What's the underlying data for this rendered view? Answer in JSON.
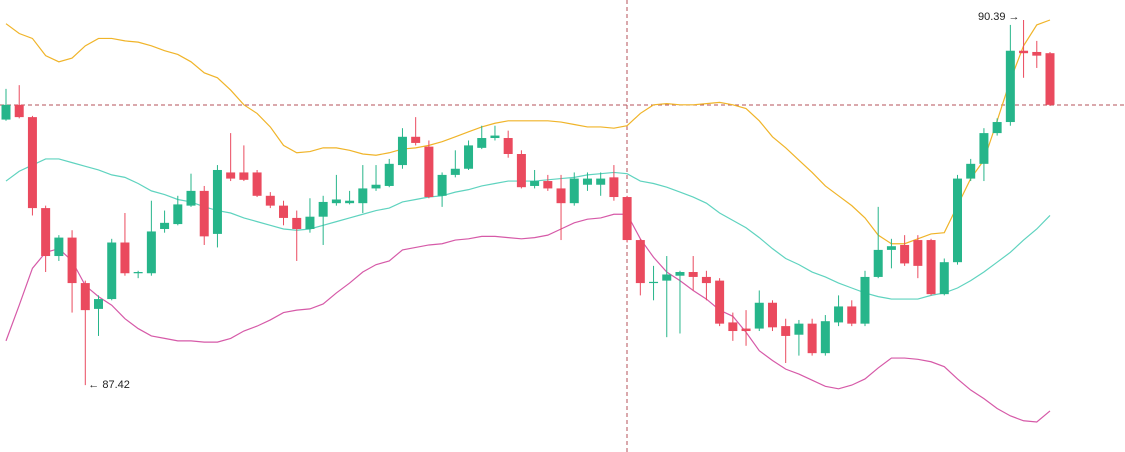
{
  "chart_data": {
    "type": "candlestick",
    "up_color": "#26b58a",
    "down_color": "#ea4a5e",
    "open": [
      89.58,
      89.7,
      89.6,
      88.86,
      88.47,
      88.62,
      88.25,
      88.04,
      88.12,
      88.58,
      88.33,
      88.33,
      88.69,
      88.73,
      88.88,
      89.0,
      88.65,
      89.15,
      89.15,
      89.15,
      88.96,
      88.88,
      88.78,
      88.69,
      88.79,
      88.9,
      88.9,
      88.9,
      89.02,
      89.04,
      89.21,
      89.44,
      89.36,
      88.96,
      89.13,
      89.18,
      89.35,
      89.43,
      89.43,
      89.3,
      89.04,
      89.08,
      89.02,
      88.9,
      89.05,
      89.05,
      89.11,
      88.95,
      88.6,
      88.25,
      88.27,
      88.31,
      88.34,
      88.3,
      88.27,
      87.93,
      87.88,
      87.88,
      88.09,
      87.9,
      87.83,
      87.92,
      87.68,
      87.93,
      88.06,
      87.92,
      88.3,
      88.52,
      88.56,
      88.6,
      88.6,
      88.16,
      88.42,
      89.1,
      89.22,
      89.47,
      89.56,
      90.14,
      90.13,
      90.12
    ],
    "high": [
      89.83,
      89.86,
      89.61,
      88.88,
      88.64,
      88.68,
      88.27,
      88.15,
      88.61,
      88.82,
      88.35,
      88.92,
      88.84,
      88.96,
      89.14,
      89.04,
      89.21,
      89.47,
      89.37,
      89.17,
      88.99,
      88.92,
      88.84,
      88.94,
      88.96,
      89.13,
      89.0,
      89.21,
      89.21,
      89.26,
      89.51,
      89.6,
      89.41,
      89.15,
      89.33,
      89.41,
      89.53,
      89.53,
      89.49,
      89.33,
      89.17,
      89.13,
      89.13,
      89.15,
      89.15,
      89.15,
      89.21,
      88.96,
      88.61,
      88.39,
      88.47,
      88.35,
      88.47,
      88.35,
      88.29,
      88.01,
      88.03,
      88.19,
      88.11,
      87.96,
      87.95,
      87.96,
      87.99,
      88.15,
      88.11,
      88.35,
      88.87,
      88.61,
      88.64,
      88.64,
      88.61,
      88.45,
      89.13,
      89.26,
      89.51,
      89.59,
      90.35,
      90.39,
      90.22,
      90.13
    ],
    "low": [
      89.57,
      89.59,
      88.8,
      88.34,
      88.43,
      88.01,
      87.42,
      87.82,
      88.11,
      88.31,
      88.29,
      88.31,
      88.66,
      88.72,
      88.87,
      88.56,
      88.54,
      89.08,
      89.08,
      88.95,
      88.86,
      88.72,
      88.43,
      88.66,
      88.56,
      88.88,
      88.89,
      88.82,
      89.0,
      89.03,
      89.18,
      89.37,
      88.94,
      88.87,
      89.11,
      89.17,
      89.34,
      89.41,
      89.27,
      89.02,
      89.02,
      89.0,
      88.6,
      88.88,
      89.0,
      88.96,
      88.92,
      88.58,
      88.15,
      88.11,
      87.81,
      87.84,
      88.19,
      88.11,
      87.9,
      87.78,
      87.74,
      87.86,
      87.86,
      87.6,
      87.66,
      87.66,
      87.66,
      87.9,
      87.9,
      87.9,
      88.29,
      88.37,
      88.39,
      88.29,
      88.15,
      88.15,
      88.4,
      89.08,
      89.08,
      89.45,
      89.53,
      89.92,
      90.0,
      89.69
    ],
    "close": [
      89.7,
      89.6,
      88.86,
      88.47,
      88.62,
      88.25,
      88.03,
      88.12,
      88.58,
      88.33,
      88.34,
      88.67,
      88.74,
      88.89,
      89.0,
      88.63,
      89.17,
      89.1,
      89.09,
      88.96,
      88.88,
      88.78,
      88.69,
      88.79,
      88.91,
      88.93,
      88.92,
      89.02,
      89.05,
      89.22,
      89.44,
      89.39,
      88.95,
      89.13,
      89.18,
      89.37,
      89.43,
      89.45,
      89.3,
      89.03,
      89.08,
      89.02,
      88.9,
      89.1,
      89.1,
      89.1,
      88.95,
      88.6,
      88.25,
      88.26,
      88.32,
      88.34,
      88.3,
      88.25,
      87.92,
      87.86,
      87.86,
      88.09,
      87.89,
      87.82,
      87.92,
      87.68,
      87.94,
      88.06,
      87.92,
      88.3,
      88.52,
      88.55,
      88.41,
      88.39,
      88.16,
      88.42,
      89.1,
      89.22,
      89.47,
      89.56,
      90.14,
      90.12,
      90.1,
      89.7
    ],
    "lines": [
      {
        "color": "#f0b429",
        "values": [
          90.36,
          90.28,
          90.24,
          90.1,
          90.05,
          90.08,
          90.18,
          90.24,
          90.24,
          90.22,
          90.21,
          90.18,
          90.14,
          90.11,
          90.05,
          89.96,
          89.92,
          89.82,
          89.7,
          89.63,
          89.52,
          89.37,
          89.31,
          89.32,
          89.35,
          89.35,
          89.33,
          89.3,
          89.29,
          89.31,
          89.34,
          89.35,
          89.37,
          89.4,
          89.44,
          89.48,
          89.52,
          89.55,
          89.57,
          89.57,
          89.57,
          89.57,
          89.56,
          89.54,
          89.52,
          89.52,
          89.51,
          89.53,
          89.63,
          89.7,
          89.71,
          89.7,
          89.7,
          89.71,
          89.72,
          89.7,
          89.67,
          89.57,
          89.44,
          89.35,
          89.25,
          89.15,
          89.04,
          88.96,
          88.88,
          88.78,
          88.64,
          88.57,
          88.57,
          88.61,
          88.65,
          88.66,
          88.88,
          89.1,
          89.25,
          89.57,
          89.9,
          90.18,
          90.35,
          90.39
        ]
      },
      {
        "color": "#5fd3bf",
        "values": [
          89.08,
          89.16,
          89.21,
          89.26,
          89.26,
          89.23,
          89.2,
          89.17,
          89.13,
          89.11,
          89.06,
          89.0,
          88.97,
          88.93,
          88.91,
          88.87,
          88.84,
          88.82,
          88.78,
          88.75,
          88.72,
          88.69,
          88.68,
          88.69,
          88.72,
          88.75,
          88.78,
          88.81,
          88.84,
          88.86,
          88.91,
          88.93,
          88.95,
          88.96,
          88.99,
          89.01,
          89.04,
          89.06,
          89.08,
          89.08,
          89.08,
          89.09,
          89.1,
          89.11,
          89.13,
          89.14,
          89.15,
          89.14,
          89.08,
          89.06,
          89.03,
          88.99,
          88.95,
          88.9,
          88.82,
          88.76,
          88.7,
          88.62,
          88.53,
          88.45,
          88.4,
          88.34,
          88.3,
          88.25,
          88.21,
          88.17,
          88.14,
          88.12,
          88.12,
          88.12,
          88.15,
          88.17,
          88.21,
          88.27,
          88.34,
          88.42,
          88.5,
          88.6,
          88.69,
          88.8
        ]
      },
      {
        "color": "#d65aa8",
        "values": [
          87.78,
          88.07,
          88.37,
          88.5,
          88.53,
          88.43,
          88.23,
          88.14,
          88.07,
          87.96,
          87.88,
          87.82,
          87.8,
          87.78,
          87.78,
          87.77,
          87.77,
          87.8,
          87.86,
          87.9,
          87.95,
          88.01,
          88.03,
          88.04,
          88.08,
          88.17,
          88.25,
          88.34,
          88.4,
          88.43,
          88.52,
          88.54,
          88.56,
          88.57,
          88.6,
          88.61,
          88.63,
          88.63,
          88.62,
          88.61,
          88.62,
          88.64,
          88.69,
          88.74,
          88.77,
          88.78,
          88.81,
          88.81,
          88.61,
          88.46,
          88.34,
          88.27,
          88.19,
          88.12,
          88.03,
          87.98,
          87.85,
          87.7,
          87.62,
          87.55,
          87.51,
          87.46,
          87.41,
          87.39,
          87.42,
          87.47,
          87.56,
          87.64,
          87.64,
          87.63,
          87.61,
          87.57,
          87.47,
          87.38,
          87.31,
          87.23,
          87.17,
          87.13,
          87.12,
          87.21
        ]
      }
    ],
    "max_label": "90.39 →",
    "min_label": "← 87.42"
  }
}
